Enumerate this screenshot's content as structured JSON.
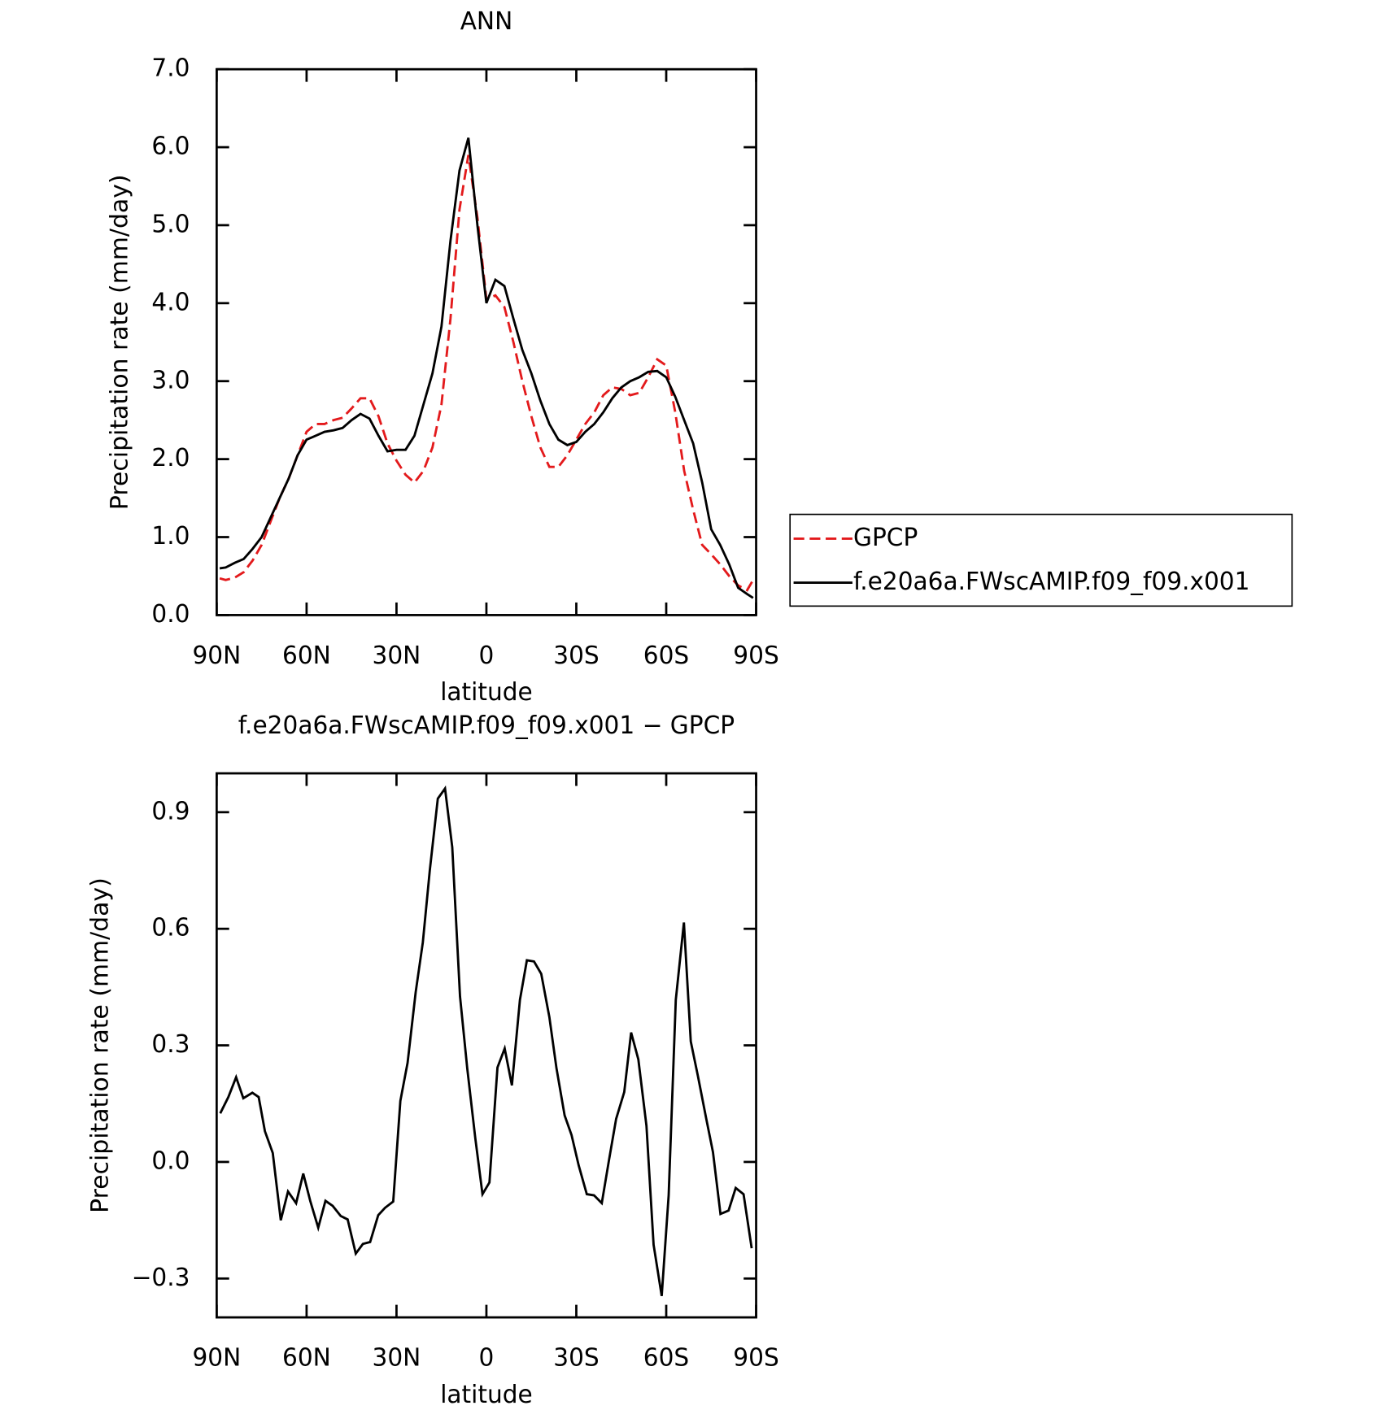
{
  "chart_data": [
    {
      "type": "line",
      "title": "ANN",
      "xlabel": "latitude",
      "ylabel": "Precipitation rate (mm/day)",
      "x": [
        89,
        87,
        84,
        81,
        78,
        75,
        72,
        69,
        66,
        63,
        60,
        57,
        54,
        51,
        48,
        45,
        42,
        39,
        36,
        33,
        30,
        27,
        24,
        21,
        18,
        15,
        12,
        9,
        6,
        3,
        0,
        -3,
        -6,
        -9,
        -12,
        -15,
        -18,
        -21,
        -24,
        -27,
        -30,
        -33,
        -36,
        -39,
        -42,
        -45,
        -48,
        -51,
        -54,
        -57,
        -60,
        -63,
        -66,
        -69,
        -72,
        -75,
        -78,
        -81,
        -84,
        -87,
        -89
      ],
      "series": [
        {
          "name": "GPCP",
          "color": "#e31a1c",
          "line_style": "dashed",
          "values": [
            0.47,
            0.45,
            0.48,
            0.55,
            0.7,
            0.9,
            1.2,
            1.5,
            1.75,
            2.05,
            2.35,
            2.45,
            2.45,
            2.5,
            2.53,
            2.65,
            2.78,
            2.78,
            2.55,
            2.2,
            1.98,
            1.8,
            1.7,
            1.85,
            2.15,
            2.7,
            3.8,
            5.2,
            5.9,
            5.1,
            4.05,
            4.1,
            3.95,
            3.5,
            3.0,
            2.55,
            2.15,
            1.9,
            1.9,
            2.05,
            2.25,
            2.45,
            2.6,
            2.82,
            2.92,
            2.9,
            2.82,
            2.85,
            3.05,
            3.28,
            3.2,
            2.6,
            1.85,
            1.35,
            0.9,
            0.78,
            0.65,
            0.5,
            0.38,
            0.32,
            0.45
          ]
        },
        {
          "name": "f.e20a6a.FWscAMIP.f09_f09.x001",
          "color": "#000000",
          "line_style": "solid",
          "values": [
            0.6,
            0.61,
            0.67,
            0.72,
            0.85,
            1.0,
            1.25,
            1.5,
            1.75,
            2.05,
            2.25,
            2.3,
            2.35,
            2.37,
            2.4,
            2.5,
            2.58,
            2.52,
            2.3,
            2.1,
            2.12,
            2.12,
            2.3,
            2.7,
            3.1,
            3.7,
            4.8,
            5.7,
            6.12,
            5.0,
            4.0,
            4.3,
            4.22,
            3.8,
            3.4,
            3.1,
            2.75,
            2.45,
            2.25,
            2.18,
            2.22,
            2.35,
            2.45,
            2.6,
            2.78,
            2.92,
            3.0,
            3.05,
            3.12,
            3.13,
            3.05,
            2.8,
            2.5,
            2.2,
            1.7,
            1.1,
            0.9,
            0.65,
            0.35,
            0.27,
            0.22
          ]
        }
      ],
      "xlim": [
        90,
        -90
      ],
      "xticks": [
        {
          "value": 90,
          "label": "90N"
        },
        {
          "value": 60,
          "label": "60N"
        },
        {
          "value": 30,
          "label": "30N"
        },
        0,
        {
          "value": -30,
          "label": "30S"
        },
        {
          "value": -60,
          "label": "60S"
        },
        {
          "value": -90,
          "label": "90S"
        }
      ],
      "ylim": [
        0,
        7
      ],
      "yticks": [
        {
          "value": 0,
          "label": "0.0"
        },
        {
          "value": 1,
          "label": "1.0"
        },
        {
          "value": 2,
          "label": "2.0"
        },
        {
          "value": 3,
          "label": "3.0"
        },
        {
          "value": 4,
          "label": "4.0"
        },
        {
          "value": 5,
          "label": "5.0"
        },
        {
          "value": 6,
          "label": "6.0"
        },
        {
          "value": 7,
          "label": "7.0"
        }
      ],
      "legend": "right"
    },
    {
      "type": "line",
      "title": "f.e20a6a.FWscAMIP.f09_f09.x001 − GPCP",
      "xlabel": "latitude",
      "ylabel": "Precipitation rate (mm/day)",
      "x": [
        88.8,
        86.1,
        83.5,
        81.1,
        78.1,
        76.0,
        73.9,
        71.3,
        68.6,
        66.2,
        63.5,
        61.1,
        58.8,
        56.1,
        53.7,
        51.3,
        48.6,
        46.3,
        43.6,
        41.2,
        38.8,
        36.1,
        33.8,
        31.1,
        28.7,
        26.3,
        23.6,
        21.2,
        18.9,
        16.2,
        13.8,
        11.4,
        8.8,
        6.4,
        3.7,
        1.3,
        -1.0,
        -3.7,
        -6.1,
        -8.5,
        -11.2,
        -13.5,
        -15.9,
        -18.3,
        -21.0,
        -23.4,
        -26.1,
        -28.4,
        -30.8,
        -33.5,
        -35.9,
        -38.5,
        -40.9,
        -43.3,
        -46.0,
        -48.3,
        -50.7,
        -53.4,
        -55.8,
        -58.5,
        -60.8,
        -63.2,
        -65.9,
        -68.2,
        -70.6,
        -73.3,
        -75.6,
        -78.1,
        -80.8,
        -83.2,
        -85.8,
        -88.5
      ],
      "values": [
        0.125,
        0.167,
        0.218,
        0.164,
        0.178,
        0.167,
        0.079,
        0.023,
        -0.15,
        -0.076,
        -0.106,
        -0.03,
        -0.1,
        -0.169,
        -0.1,
        -0.113,
        -0.139,
        -0.148,
        -0.236,
        -0.211,
        -0.206,
        -0.137,
        -0.118,
        -0.102,
        0.157,
        0.255,
        0.437,
        0.565,
        0.75,
        0.935,
        0.961,
        0.81,
        0.426,
        0.241,
        0.06,
        -0.083,
        -0.053,
        0.243,
        0.292,
        0.197,
        0.417,
        0.519,
        0.516,
        0.484,
        0.373,
        0.241,
        0.12,
        0.069,
        -0.009,
        -0.083,
        -0.086,
        -0.106,
        0.005,
        0.111,
        0.18,
        0.333,
        0.264,
        0.093,
        -0.213,
        -0.345,
        -0.086,
        0.417,
        0.616,
        0.31,
        0.22,
        0.113,
        0.025,
        -0.134,
        -0.125,
        -0.067,
        -0.083,
        -0.222
      ],
      "color": "#000000",
      "xlim": [
        90,
        -90
      ],
      "xticks": [
        {
          "value": 90,
          "label": "90N"
        },
        {
          "value": 60,
          "label": "60N"
        },
        {
          "value": 30,
          "label": "30N"
        },
        0,
        {
          "value": -30,
          "label": "30S"
        },
        {
          "value": -60,
          "label": "60S"
        },
        {
          "value": -90,
          "label": "90S"
        }
      ],
      "ylim": [
        -0.4,
        1.0
      ],
      "yticks": [
        {
          "value": -0.3,
          "label": "−0.3"
        },
        {
          "value": 0,
          "label": "0.0"
        },
        0.3,
        0.6,
        0.9
      ]
    }
  ]
}
